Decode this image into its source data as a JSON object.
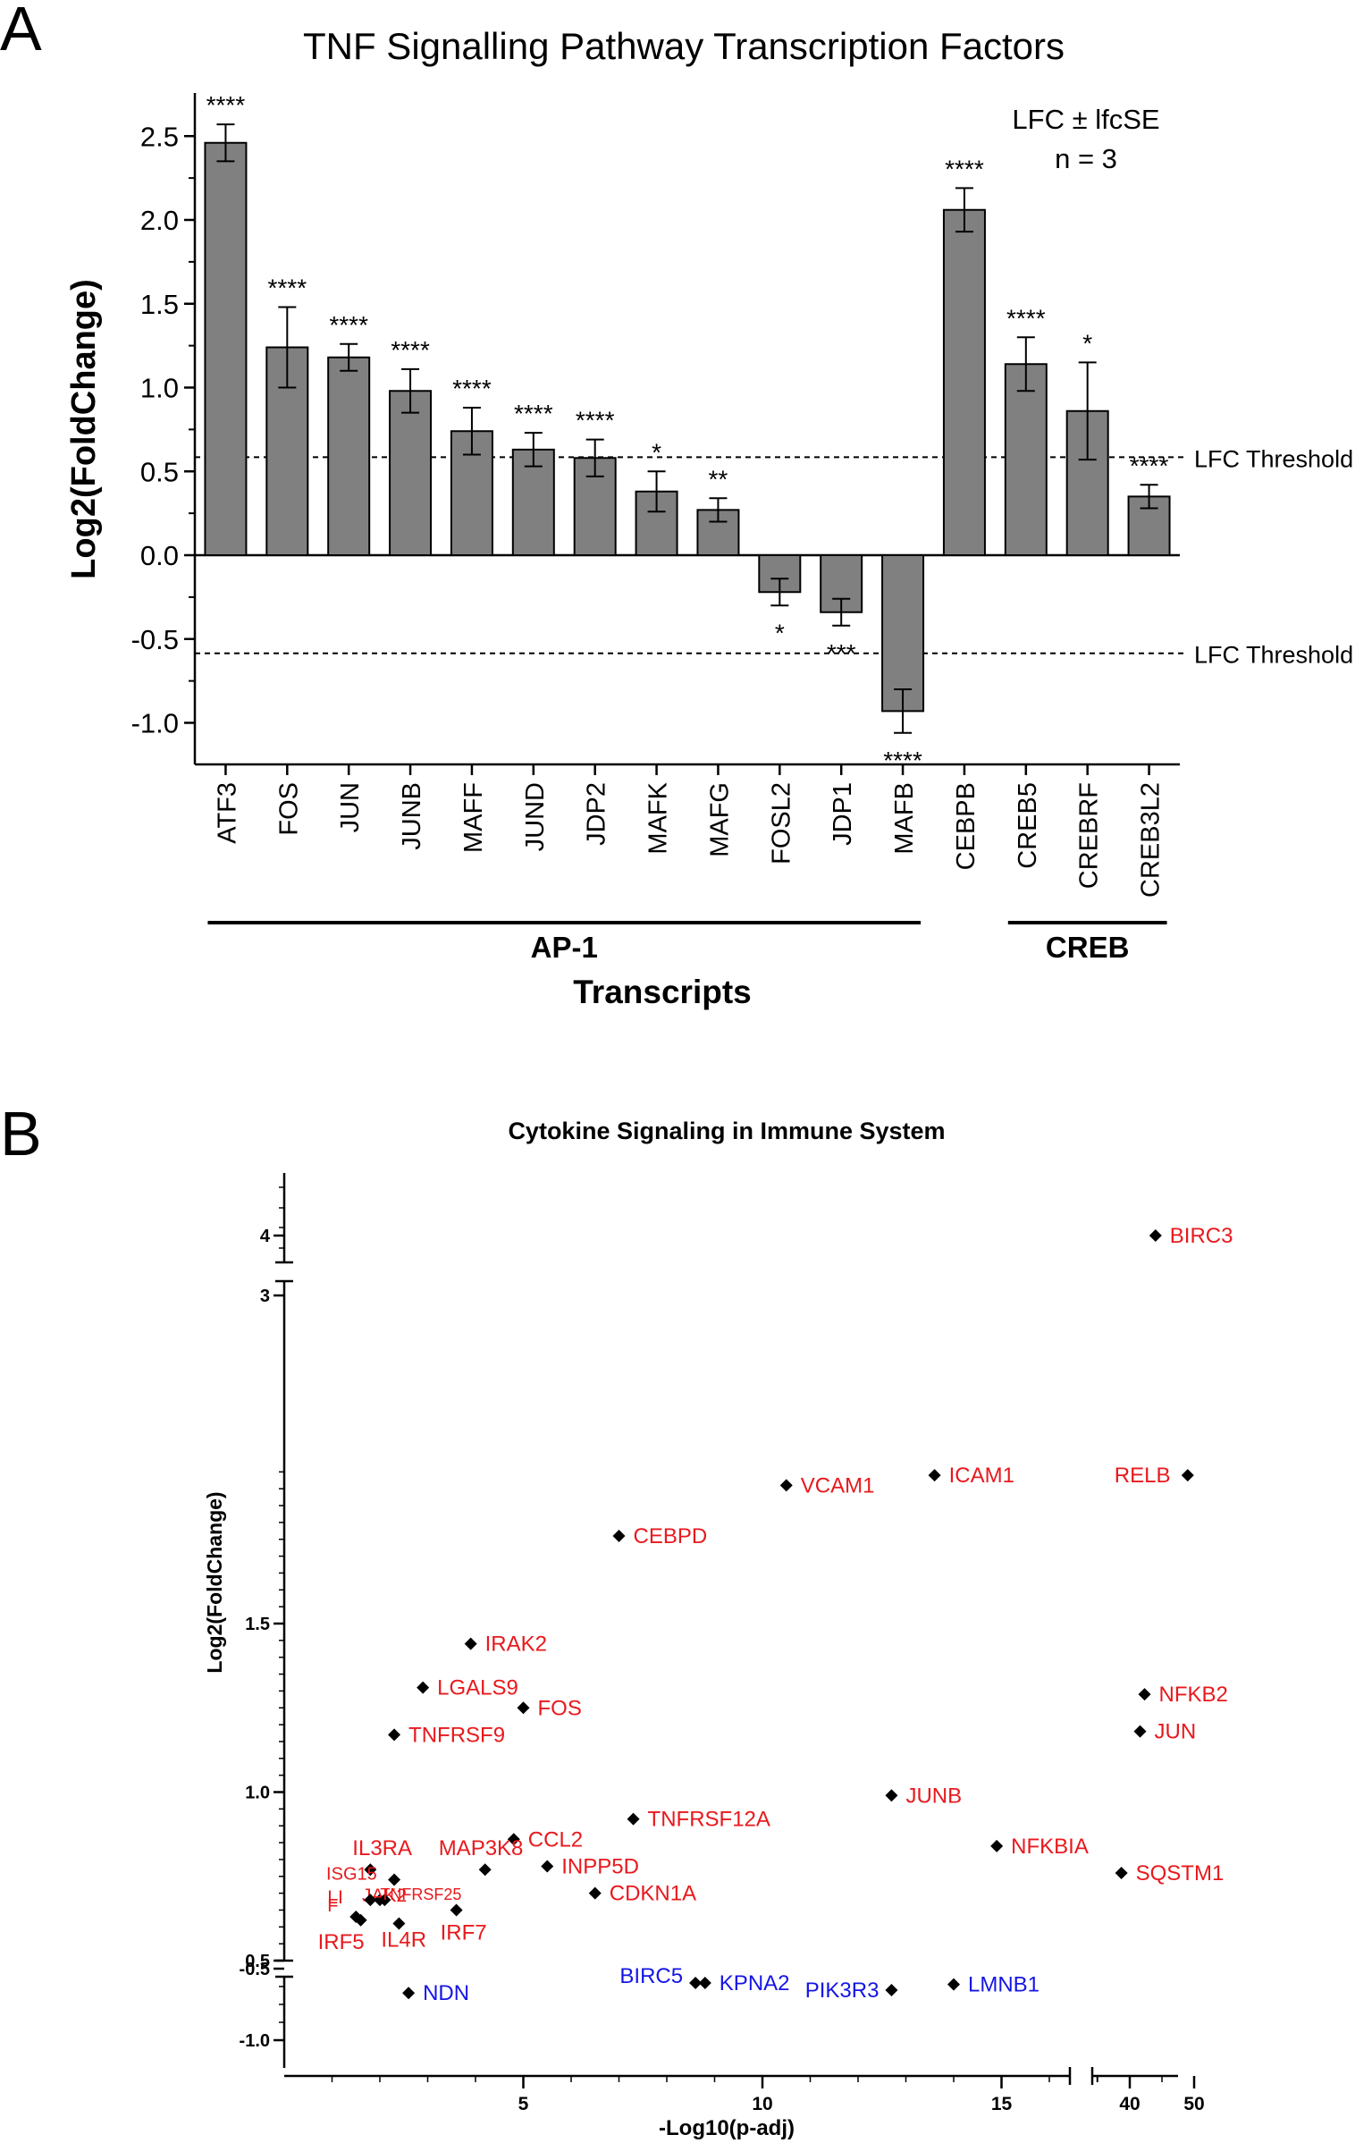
{
  "panels": {
    "a": {
      "letter": "A",
      "title": "TNF Signalling Pathway Transcription Factors",
      "ylabel": "Log2(FoldChange)",
      "xlabel": "Transcripts",
      "legend": {
        "line1": "LFC ± lfcSE",
        "line2": "n = 3"
      },
      "threshold_label": "LFC Threshold",
      "groups": [
        {
          "label": "AP-1",
          "from": "ATF3",
          "to": "MAFB"
        },
        {
          "label": "CREB",
          "from": "CREB5",
          "to": "CREB3L2"
        }
      ]
    },
    "b": {
      "letter": "B",
      "title": "Cytokine Signaling in Immune System",
      "ylabel": "Log2(FoldChange)",
      "xlabel": "-Log10(p-adj)"
    }
  },
  "chart_data": [
    {
      "type": "bar",
      "title": "TNF Signalling Pathway Transcription Factors",
      "xlabel": "Transcripts",
      "ylabel": "Log2(FoldChange)",
      "ylim": [
        -1.05,
        2.72
      ],
      "yticks": [
        "2.5",
        "2.0",
        "1.5",
        "1.0",
        "0.5",
        "0.0",
        "-0.5",
        "-1.0"
      ],
      "ytick_values": [
        2.5,
        2.0,
        1.5,
        1.0,
        0.5,
        0.0,
        -0.5,
        -1.0
      ],
      "thresholds": [
        0.585,
        -0.585
      ],
      "categories": [
        "ATF3",
        "FOS",
        "JUN",
        "JUNB",
        "MAFF",
        "JUND",
        "JDP2",
        "MAFK",
        "MAFG",
        "FOSL2",
        "JDP1",
        "MAFB",
        "CEBPB",
        "CREB5",
        "CREBRF",
        "CREB3L2"
      ],
      "values": [
        2.46,
        1.24,
        1.18,
        0.98,
        0.74,
        0.63,
        0.58,
        0.38,
        0.27,
        -0.22,
        -0.34,
        -0.93,
        2.06,
        1.14,
        0.86,
        0.35
      ],
      "errors": [
        0.11,
        0.24,
        0.08,
        0.13,
        0.14,
        0.1,
        0.11,
        0.12,
        0.07,
        0.08,
        0.08,
        0.13,
        0.13,
        0.16,
        0.29,
        0.07
      ],
      "significance": [
        "****",
        "****",
        "****",
        "****",
        "****",
        "****",
        "****",
        "*",
        "**",
        "*",
        "***",
        "****",
        "****",
        "****",
        "*",
        "****"
      ],
      "grid": false
    },
    {
      "type": "scatter",
      "title": "Cytokine Signaling in Immune System",
      "xlabel": "-Log10(p-adj)",
      "ylabel": "Log2(FoldChange)",
      "xticks": [
        "5",
        "10",
        "15",
        "40",
        "50"
      ],
      "xtick_values": [
        5,
        10,
        15,
        40,
        50
      ],
      "yticks": [
        "4",
        "3",
        "1.5",
        "1.0",
        "0.5",
        "-0.5",
        "-1.0"
      ],
      "ytick_values": [
        4,
        3,
        1.5,
        1.0,
        0.5,
        -0.5,
        -1.0
      ],
      "x_axis_break": [
        17.5,
        36
      ],
      "y_axis_breaks": [
        [
          -0.55,
          0.5
        ],
        [
          1.98,
          2.6
        ]
      ],
      "colors": {
        "up": "#e8191d",
        "down": "#1515e6",
        "marker": "#000000"
      },
      "points": [
        {
          "gene": "BIRC3",
          "x": 44,
          "y": 4.0,
          "dir": "up"
        },
        {
          "gene": "ICAM1",
          "x": 13.6,
          "y": 1.94,
          "dir": "up"
        },
        {
          "gene": "RELB",
          "x": 49,
          "y": 1.94,
          "dir": "up"
        },
        {
          "gene": "VCAM1",
          "x": 10.5,
          "y": 1.91,
          "dir": "up"
        },
        {
          "gene": "CEBPD",
          "x": 7.0,
          "y": 1.76,
          "dir": "up"
        },
        {
          "gene": "IRAK2",
          "x": 3.9,
          "y": 1.44,
          "dir": "up"
        },
        {
          "gene": "LGALS9",
          "x": 2.9,
          "y": 1.31,
          "dir": "up"
        },
        {
          "gene": "FOS",
          "x": 5.0,
          "y": 1.25,
          "dir": "up"
        },
        {
          "gene": "TNFRSF9",
          "x": 2.3,
          "y": 1.17,
          "dir": "up"
        },
        {
          "gene": "NFKB2",
          "x": 42.3,
          "y": 1.29,
          "dir": "up"
        },
        {
          "gene": "JUN",
          "x": 41.6,
          "y": 1.18,
          "dir": "up"
        },
        {
          "gene": "JUNB",
          "x": 12.7,
          "y": 0.99,
          "dir": "up"
        },
        {
          "gene": "TNFRSF12A",
          "x": 7.3,
          "y": 0.92,
          "dir": "up"
        },
        {
          "gene": "CCL2",
          "x": 4.8,
          "y": 0.86,
          "dir": "up"
        },
        {
          "gene": "NFKBIA",
          "x": 14.9,
          "y": 0.84,
          "dir": "up"
        },
        {
          "gene": "SQSTM1",
          "x": 38.7,
          "y": 0.76,
          "dir": "up"
        },
        {
          "gene": "IL3RA",
          "x": 1.8,
          "y": 0.77,
          "dir": "up"
        },
        {
          "gene": "MAP3K8",
          "x": 4.2,
          "y": 0.77,
          "dir": "up"
        },
        {
          "gene": "INPP5D",
          "x": 5.5,
          "y": 0.78,
          "dir": "up"
        },
        {
          "gene": "ISG15",
          "x": 2.3,
          "y": 0.74,
          "dir": "up"
        },
        {
          "gene": "CDKN1A",
          "x": 6.5,
          "y": 0.7,
          "dir": "up"
        },
        {
          "gene": "JAK2",
          "x": 2.0,
          "y": 0.68,
          "dir": "up"
        },
        {
          "gene": "LI",
          "x": 1.8,
          "y": 0.68,
          "dir": "up"
        },
        {
          "gene": "TNFRSF25",
          "x": 2.1,
          "y": 0.68,
          "dir": "up"
        },
        {
          "gene": "F",
          "x": 1.5,
          "y": 0.63,
          "dir": "up"
        },
        {
          "gene": "IRF5",
          "x": 1.6,
          "y": 0.62,
          "dir": "up"
        },
        {
          "gene": "IRF7",
          "x": 3.6,
          "y": 0.65,
          "dir": "up"
        },
        {
          "gene": "IL4R",
          "x": 2.4,
          "y": 0.61,
          "dir": "up"
        },
        {
          "gene": "BIRC5",
          "x": 8.6,
          "y": -0.6,
          "dir": "down"
        },
        {
          "gene": "KPNA2",
          "x": 8.8,
          "y": -0.6,
          "dir": "down"
        },
        {
          "gene": "LMNB1",
          "x": 14.0,
          "y": -0.61,
          "dir": "down"
        },
        {
          "gene": "PIK3R3",
          "x": 12.7,
          "y": -0.65,
          "dir": "down"
        },
        {
          "gene": "NDN",
          "x": 2.6,
          "y": -0.67,
          "dir": "down"
        }
      ]
    }
  ]
}
